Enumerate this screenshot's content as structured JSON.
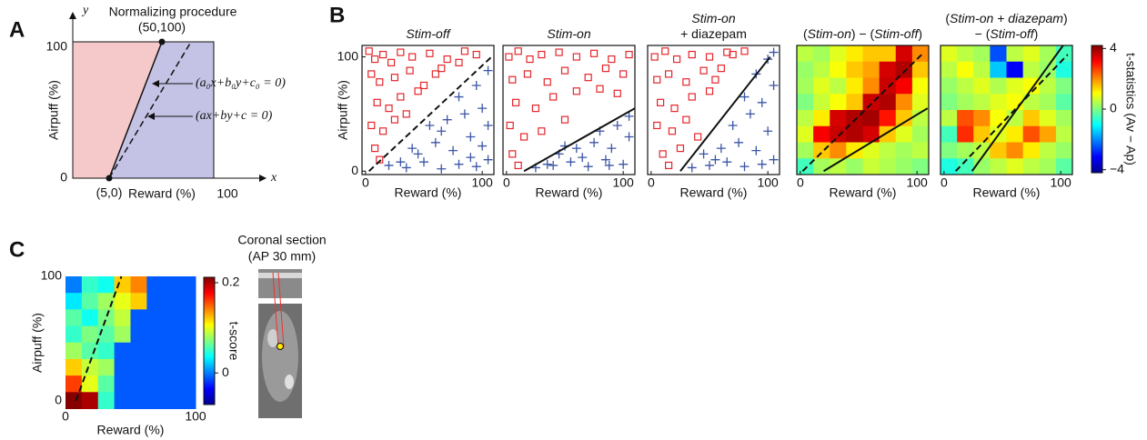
{
  "panel_a": {
    "label": "A",
    "title": "Normalizing procedure",
    "point_top": "(50,100)",
    "point_bottom": "(5,0)",
    "axis_y": "y",
    "axis_x": "x",
    "y_label": "Airpuff (%)",
    "x_label": "Reward (%)",
    "ytick_top": "100",
    "ytick_bottom": "0",
    "xtick_right": "100",
    "eq_normalized": "(a₀x+b₀y+c₀ = 0)",
    "eq_fit": "(ax+by+c = 0)"
  },
  "panel_b": {
    "label": "B",
    "y_label": "Airpuff (%)",
    "x_label": "Reward (%)",
    "xlim": [
      -3,
      110
    ],
    "ylim": [
      -3,
      110
    ],
    "square_color": "#e3262b",
    "cross_color": "#3b55a5",
    "plots": [
      {
        "type": "scatter",
        "title_lines": [
          [
            {
              "text": "Stim-off",
              "italic": true
            }
          ]
        ],
        "xticks": [
          0,
          100
        ],
        "yticks": [
          0,
          100
        ],
        "line": {
          "x": [
            3,
            108
          ],
          "y": [
            0,
            100
          ],
          "dashed": true
        },
        "squares": [
          [
            3,
            105
          ],
          [
            8,
            98
          ],
          [
            15,
            102
          ],
          [
            22,
            95
          ],
          [
            30,
            104
          ],
          [
            40,
            100
          ],
          [
            55,
            103
          ],
          [
            70,
            98
          ],
          [
            85,
            105
          ],
          [
            95,
            102
          ],
          [
            5,
            85
          ],
          [
            12,
            78
          ],
          [
            25,
            82
          ],
          [
            38,
            88
          ],
          [
            50,
            75
          ],
          [
            65,
            90
          ],
          [
            10,
            60
          ],
          [
            20,
            55
          ],
          [
            30,
            65
          ],
          [
            45,
            70
          ],
          [
            5,
            40
          ],
          [
            15,
            35
          ],
          [
            25,
            45
          ],
          [
            8,
            20
          ],
          [
            12,
            10
          ],
          [
            35,
            50
          ],
          [
            60,
            85
          ],
          [
            80,
            95
          ]
        ],
        "crosses": [
          [
            20,
            5
          ],
          [
            35,
            3
          ],
          [
            50,
            8
          ],
          [
            65,
            2
          ],
          [
            80,
            6
          ],
          [
            95,
            4
          ],
          [
            105,
            10
          ],
          [
            40,
            20
          ],
          [
            60,
            25
          ],
          [
            75,
            18
          ],
          [
            90,
            30
          ],
          [
            100,
            22
          ],
          [
            55,
            40
          ],
          [
            70,
            45
          ],
          [
            85,
            50
          ],
          [
            100,
            55
          ],
          [
            80,
            65
          ],
          [
            95,
            75
          ],
          [
            105,
            88
          ],
          [
            65,
            35
          ],
          [
            45,
            15
          ],
          [
            30,
            8
          ],
          [
            90,
            12
          ],
          [
            105,
            40
          ]
        ]
      },
      {
        "type": "scatter",
        "title_lines": [
          [
            {
              "text": "Stim-on",
              "italic": true
            }
          ]
        ],
        "xticks": [
          0,
          100
        ],
        "line": {
          "x": [
            15,
            110
          ],
          "y": [
            0,
            55
          ],
          "dashed": false
        },
        "squares": [
          [
            2,
            100
          ],
          [
            10,
            105
          ],
          [
            20,
            98
          ],
          [
            30,
            102
          ],
          [
            45,
            104
          ],
          [
            60,
            100
          ],
          [
            75,
            103
          ],
          [
            90,
            98
          ],
          [
            105,
            102
          ],
          [
            5,
            80
          ],
          [
            18,
            85
          ],
          [
            35,
            78
          ],
          [
            50,
            88
          ],
          [
            70,
            82
          ],
          [
            85,
            90
          ],
          [
            100,
            85
          ],
          [
            8,
            60
          ],
          [
            25,
            55
          ],
          [
            40,
            65
          ],
          [
            60,
            70
          ],
          [
            80,
            72
          ],
          [
            3,
            40
          ],
          [
            15,
            30
          ],
          [
            30,
            35
          ],
          [
            50,
            45
          ],
          [
            5,
            15
          ],
          [
            10,
            5
          ],
          [
            95,
            68
          ]
        ],
        "crosses": [
          [
            25,
            3
          ],
          [
            40,
            5
          ],
          [
            55,
            8
          ],
          [
            70,
            4
          ],
          [
            85,
            10
          ],
          [
            100,
            6
          ],
          [
            45,
            15
          ],
          [
            60,
            20
          ],
          [
            75,
            25
          ],
          [
            90,
            20
          ],
          [
            105,
            30
          ],
          [
            65,
            12
          ],
          [
            80,
            35
          ],
          [
            95,
            40
          ],
          [
            105,
            48
          ],
          [
            35,
            6
          ],
          [
            50,
            22
          ],
          [
            88,
            5
          ]
        ]
      },
      {
        "type": "scatter",
        "title_lines": [
          [
            {
              "text": "Stim-on",
              "italic": true
            }
          ],
          [
            {
              "text": "+ diazepam",
              "italic": false
            }
          ]
        ],
        "xticks": [
          0,
          100
        ],
        "line": {
          "x": [
            25,
            102
          ],
          "y": [
            0,
            100
          ],
          "dashed": false
        },
        "squares": [
          [
            3,
            100
          ],
          [
            12,
            105
          ],
          [
            22,
            98
          ],
          [
            35,
            102
          ],
          [
            50,
            100
          ],
          [
            65,
            104
          ],
          [
            80,
            105
          ],
          [
            5,
            80
          ],
          [
            15,
            85
          ],
          [
            30,
            78
          ],
          [
            45,
            88
          ],
          [
            60,
            90
          ],
          [
            8,
            60
          ],
          [
            20,
            55
          ],
          [
            35,
            65
          ],
          [
            50,
            70
          ],
          [
            5,
            40
          ],
          [
            18,
            35
          ],
          [
            30,
            45
          ],
          [
            40,
            30
          ],
          [
            10,
            15
          ],
          [
            15,
            5
          ],
          [
            25,
            20
          ],
          [
            55,
            80
          ],
          [
            70,
            102
          ]
        ],
        "crosses": [
          [
            35,
            3
          ],
          [
            50,
            5
          ],
          [
            65,
            8
          ],
          [
            80,
            4
          ],
          [
            95,
            6
          ],
          [
            105,
            10
          ],
          [
            45,
            15
          ],
          [
            60,
            20
          ],
          [
            75,
            25
          ],
          [
            90,
            18
          ],
          [
            100,
            35
          ],
          [
            70,
            40
          ],
          [
            85,
            50
          ],
          [
            95,
            60
          ],
          [
            105,
            75
          ],
          [
            90,
            85
          ],
          [
            100,
            98
          ],
          [
            105,
            104
          ],
          [
            55,
            10
          ],
          [
            80,
            65
          ]
        ]
      },
      {
        "type": "heatmap",
        "title_lines": [
          [
            {
              "text": "(",
              "italic": false
            },
            {
              "text": "Stim-on",
              "italic": true
            },
            {
              "text": ") − (",
              "italic": false
            },
            {
              "text": "Stim-off",
              "italic": true
            },
            {
              "text": ")",
              "italic": false
            }
          ]
        ],
        "xticks": [
          0,
          100
        ],
        "lines": [
          {
            "x": [
              2,
              106
            ],
            "y": [
              0,
              104
            ],
            "dashed": true
          },
          {
            "x": [
              20,
              109
            ],
            "y": [
              0,
              55
            ],
            "dashed": false
          }
        ],
        "cells": [
          [
            0.5,
            0.3,
            0.8,
            1.2,
            1.5,
            1.5,
            3.5,
            2.0
          ],
          [
            0.2,
            0.5,
            1.0,
            1.5,
            1.8,
            3.5,
            3.8,
            1.5
          ],
          [
            0.3,
            0.8,
            0.5,
            1.2,
            2.0,
            3.6,
            3.2,
            1.0
          ],
          [
            0.0,
            0.6,
            1.0,
            1.5,
            3.6,
            3.8,
            2.0,
            0.8
          ],
          [
            0.5,
            1.2,
            3.5,
            3.8,
            3.9,
            3.0,
            1.5,
            0.5
          ],
          [
            0.8,
            3.2,
            3.6,
            3.8,
            3.5,
            1.5,
            0.8,
            0.3
          ],
          [
            0.3,
            1.5,
            2.0,
            1.2,
            0.8,
            0.5,
            0.3,
            0.5
          ],
          [
            -0.5,
            0.3,
            0.5,
            0.2,
            0.6,
            0.4,
            0.2,
            0.0
          ]
        ]
      },
      {
        "type": "heatmap",
        "title_lines": [
          [
            {
              "text": "(",
              "italic": false
            },
            {
              "text": "Stim-on + diazepam",
              "italic": true
            },
            {
              "text": ")",
              "italic": false
            }
          ],
          [
            {
              "text": "− (",
              "italic": false
            },
            {
              "text": "Stim-off",
              "italic": true
            },
            {
              "text": ")",
              "italic": false
            }
          ]
        ],
        "xticks": [
          0,
          100
        ],
        "lines": [
          {
            "x": [
              10,
              106
            ],
            "y": [
              0,
              102
            ],
            "dashed": true
          },
          {
            "x": [
              24,
              102
            ],
            "y": [
              0,
              110
            ],
            "dashed": false
          }
        ],
        "cells": [
          [
            0.8,
            0.5,
            0.3,
            -2.5,
            0.5,
            0.8,
            0.3,
            -0.5
          ],
          [
            0.5,
            1.0,
            0.5,
            -1.5,
            -3.2,
            0.5,
            0.2,
            -0.8
          ],
          [
            0.2,
            0.5,
            0.8,
            0.4,
            0.8,
            1.0,
            0.5,
            0.0
          ],
          [
            0.0,
            0.3,
            0.5,
            0.8,
            1.0,
            0.5,
            0.3,
            -0.3
          ],
          [
            0.5,
            2.5,
            2.0,
            1.0,
            0.5,
            1.5,
            0.8,
            0.3
          ],
          [
            -0.5,
            2.8,
            1.5,
            0.8,
            1.2,
            2.5,
            1.8,
            0.5
          ],
          [
            0.0,
            0.3,
            0.5,
            1.5,
            2.0,
            1.2,
            0.5,
            0.2
          ],
          [
            -0.8,
            -0.5,
            0.2,
            0.5,
            0.8,
            0.5,
            0.3,
            -0.3
          ]
        ]
      }
    ],
    "colorbar": {
      "label": "t-statistics (Av − Ap)",
      "clim": [
        -4.2,
        4.2
      ],
      "ticks": [
        {
          "value": -4,
          "label": "−4"
        },
        0,
        4
      ]
    }
  },
  "panel_c": {
    "label": "C",
    "type": "heatmap",
    "y_label": "Airpuff (%)",
    "x_label": "Reward  (%)",
    "xlim": [
      0,
      100
    ],
    "ylim": [
      0,
      100
    ],
    "xticks": [
      0,
      100
    ],
    "yticks": [
      0,
      100
    ],
    "line": {
      "x": [
        8,
        43
      ],
      "y": [
        0,
        100
      ],
      "dashed": true
    },
    "cells": [
      [
        0.0,
        0.05,
        0.04,
        0.12,
        0.14,
        -0.01,
        -0.01,
        -0.01
      ],
      [
        0.03,
        0.06,
        0.08,
        0.1,
        0.12,
        -0.01,
        -0.01,
        -0.01
      ],
      [
        0.06,
        0.04,
        0.07,
        0.09,
        -0.01,
        -0.01,
        -0.01,
        -0.01
      ],
      [
        0.05,
        0.07,
        0.06,
        0.08,
        -0.01,
        -0.01,
        -0.01,
        -0.01
      ],
      [
        0.08,
        0.06,
        0.05,
        -0.01,
        -0.01,
        -0.01,
        -0.01,
        -0.01
      ],
      [
        0.12,
        0.09,
        0.08,
        -0.01,
        -0.01,
        -0.01,
        -0.01,
        -0.01
      ],
      [
        0.16,
        0.1,
        0.06,
        -0.01,
        -0.01,
        -0.01,
        -0.01,
        -0.01
      ],
      [
        0.21,
        0.2,
        0.05,
        -0.01,
        -0.01,
        -0.01,
        -0.01,
        -0.01
      ]
    ],
    "colorbar": {
      "label": "t-score",
      "clim": [
        -0.07,
        0.212
      ],
      "ticks": [
        0,
        0.2
      ]
    },
    "section_title": "Coronal section",
    "section_subtitle": "(AP 30 mm)"
  }
}
